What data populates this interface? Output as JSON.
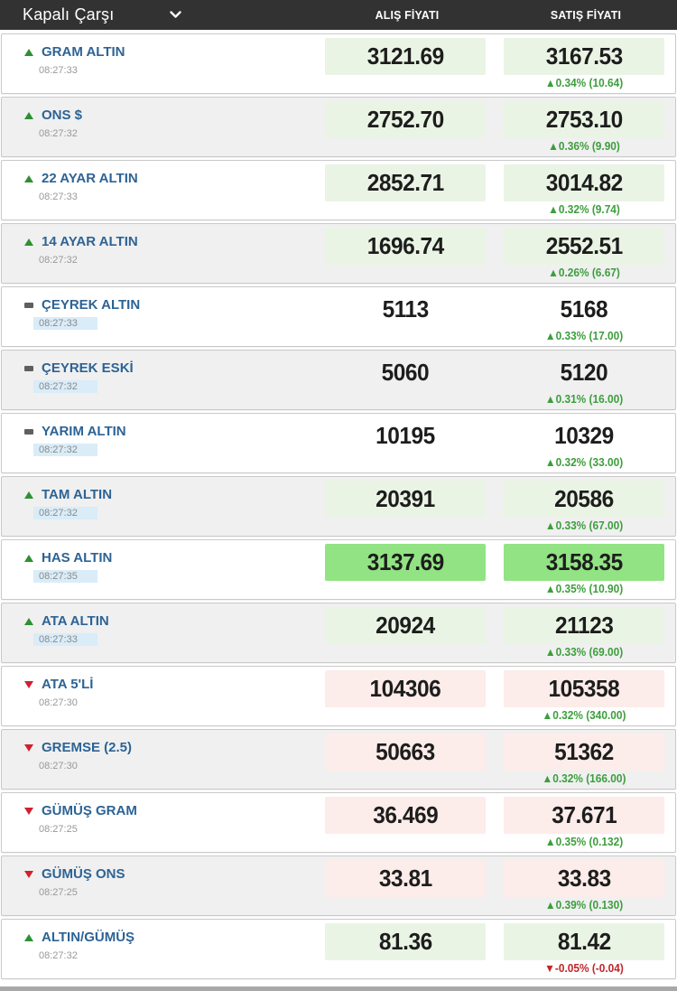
{
  "header": {
    "market_selector": "Kapalı Çarşı",
    "columns": {
      "buy": "ALIŞ FİYATI",
      "sell": "SATIŞ FİYATI"
    }
  },
  "icons": {
    "up_arrow": "▲",
    "down_arrow": "▼"
  },
  "colors": {
    "header_bg": "#323232",
    "name_blue": "#2d6395",
    "positive_green": "#3c9e3c",
    "negative_red": "#c0262b",
    "tint_green": "#eaf4e4",
    "tint_red": "#fcecea",
    "tint_bright_green": "#92e383",
    "time_highlight_blue": "#d9ecf8"
  },
  "rows": [
    {
      "name": "GRAM ALTIN",
      "time": "08:27:33",
      "time_highlighted": false,
      "trend": "up",
      "buy": "3121.69",
      "sell": "3167.53",
      "tint": "green",
      "change": {
        "dir": "up",
        "text": "0.34% (10.64)"
      }
    },
    {
      "name": "ONS $",
      "time": "08:27:32",
      "time_highlighted": false,
      "trend": "up",
      "buy": "2752.70",
      "sell": "2753.10",
      "tint": "green",
      "change": {
        "dir": "up",
        "text": "0.36% (9.90)"
      }
    },
    {
      "name": "22 AYAR ALTIN",
      "time": "08:27:33",
      "time_highlighted": false,
      "trend": "up",
      "buy": "2852.71",
      "sell": "3014.82",
      "tint": "green",
      "change": {
        "dir": "up",
        "text": "0.32% (9.74)"
      }
    },
    {
      "name": "14 AYAR ALTIN",
      "time": "08:27:32",
      "time_highlighted": false,
      "trend": "up",
      "buy": "1696.74",
      "sell": "2552.51",
      "tint": "green",
      "change": {
        "dir": "up",
        "text": "0.26% (6.67)"
      }
    },
    {
      "name": "ÇEYREK ALTIN",
      "time": "08:27:33",
      "time_highlighted": true,
      "trend": "flat",
      "buy": "5113",
      "sell": "5168",
      "tint": "none",
      "change": {
        "dir": "up",
        "text": "0.33% (17.00)"
      }
    },
    {
      "name": "ÇEYREK ESKİ",
      "time": "08:27:32",
      "time_highlighted": true,
      "trend": "flat",
      "buy": "5060",
      "sell": "5120",
      "tint": "none",
      "change": {
        "dir": "up",
        "text": "0.31% (16.00)"
      }
    },
    {
      "name": "YARIM ALTIN",
      "time": "08:27:32",
      "time_highlighted": true,
      "trend": "flat",
      "buy": "10195",
      "sell": "10329",
      "tint": "none",
      "change": {
        "dir": "up",
        "text": "0.32% (33.00)"
      }
    },
    {
      "name": "TAM ALTIN",
      "time": "08:27:32",
      "time_highlighted": true,
      "trend": "up",
      "buy": "20391",
      "sell": "20586",
      "tint": "green",
      "change": {
        "dir": "up",
        "text": "0.33% (67.00)"
      }
    },
    {
      "name": "HAS ALTIN",
      "time": "08:27:35",
      "time_highlighted": true,
      "trend": "up",
      "buy": "3137.69",
      "sell": "3158.35",
      "tint": "bright",
      "change": {
        "dir": "up",
        "text": "0.35% (10.90)"
      }
    },
    {
      "name": "ATA ALTIN",
      "time": "08:27:33",
      "time_highlighted": true,
      "trend": "up",
      "buy": "20924",
      "sell": "21123",
      "tint": "green",
      "change": {
        "dir": "up",
        "text": "0.33% (69.00)"
      }
    },
    {
      "name": "ATA 5'Lİ",
      "time": "08:27:30",
      "time_highlighted": false,
      "trend": "down",
      "buy": "104306",
      "sell": "105358",
      "tint": "red",
      "change": {
        "dir": "up",
        "text": "0.32% (340.00)"
      }
    },
    {
      "name": "GREMSE (2.5)",
      "time": "08:27:30",
      "time_highlighted": false,
      "trend": "down",
      "buy": "50663",
      "sell": "51362",
      "tint": "red",
      "change": {
        "dir": "up",
        "text": "0.32% (166.00)"
      }
    },
    {
      "name": "GÜMÜŞ GRAM",
      "time": "08:27:25",
      "time_highlighted": false,
      "trend": "down",
      "buy": "36.469",
      "sell": "37.671",
      "tint": "red",
      "change": {
        "dir": "up",
        "text": "0.35% (0.132)"
      }
    },
    {
      "name": "GÜMÜŞ ONS",
      "time": "08:27:25",
      "time_highlighted": false,
      "trend": "down",
      "buy": "33.81",
      "sell": "33.83",
      "tint": "red",
      "change": {
        "dir": "up",
        "text": "0.39% (0.130)"
      }
    },
    {
      "name": "ALTIN/GÜMÜŞ",
      "time": "08:27:32",
      "time_highlighted": false,
      "trend": "up",
      "buy": "81.36",
      "sell": "81.42",
      "tint": "green",
      "change": {
        "dir": "down",
        "text": "-0.05% (-0.04)"
      }
    }
  ]
}
